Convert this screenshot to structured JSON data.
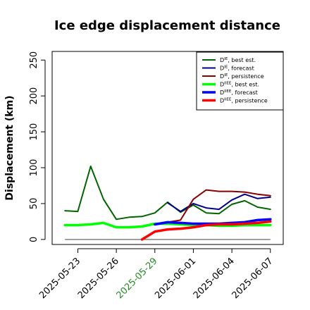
{
  "chart_data": {
    "type": "line",
    "title": "Ice edge displacement distance",
    "ylabel": "Displacement (km)",
    "xlabel": "",
    "ylim": [
      -7,
      262
    ],
    "x_dates": [
      "2025-05-22",
      "2025-05-23",
      "2025-05-24",
      "2025-05-25",
      "2025-05-26",
      "2025-05-27",
      "2025-05-28",
      "2025-05-29",
      "2025-05-30",
      "2025-05-31",
      "2025-06-01",
      "2025-06-02",
      "2025-06-03",
      "2025-06-04",
      "2025-06-05",
      "2025-06-06",
      "2025-06-07"
    ],
    "xlim": [
      "2025-05-21",
      "2025-06-08"
    ],
    "x_ticks": [
      "2025-05-23",
      "2025-05-26",
      "2025-05-29",
      "2025-06-01",
      "2025-06-04",
      "2025-06-07"
    ],
    "x_tick_colors": [
      "#000000",
      "#000000",
      "#228b22",
      "#000000",
      "#000000",
      "#000000"
    ],
    "y_ticks": [
      0,
      50,
      100,
      150,
      200,
      250
    ],
    "grid": false,
    "legend_position": "top-right",
    "series": [
      {
        "name": "DIE, best est.",
        "sup": "IE",
        "desc": "best est.",
        "color": "#006400",
        "width": 2,
        "x_start": 0,
        "values": [
          40,
          39,
          102,
          56,
          28,
          31,
          32,
          37,
          52,
          38,
          48,
          37,
          36,
          49,
          54,
          45,
          42
        ]
      },
      {
        "name": "DIE, forecast",
        "sup": "IE",
        "desc": "forecast",
        "color": "#00008b",
        "width": 2,
        "x_start": 8,
        "values": [
          51,
          39,
          50,
          44,
          42,
          55,
          63,
          57,
          59
        ]
      },
      {
        "name": "DIE, persistence",
        "sup": "IE",
        "desc": "persistence",
        "color": "#8b0000",
        "width": 2,
        "x_start": 8,
        "values": [
          24,
          27,
          56,
          69,
          67,
          67,
          66,
          63,
          61
        ]
      },
      {
        "name": "DIIEE, best est.",
        "sup": "IIEE",
        "desc": "best est.",
        "color": "#00ff00",
        "width": 3.5,
        "x_start": 0,
        "values": [
          20,
          20,
          21,
          23,
          17,
          17,
          18,
          22,
          22,
          21,
          20,
          20,
          19,
          19,
          20,
          20,
          20
        ]
      },
      {
        "name": "DIIEE, forecast",
        "sup": "IIEE",
        "desc": "forecast",
        "color": "#0000ff",
        "width": 3.5,
        "x_start": 7,
        "values": [
          21,
          24,
          23,
          22,
          22,
          22,
          23,
          24,
          27,
          28
        ]
      },
      {
        "name": "DIIEE, persistence",
        "sup": "IIEE",
        "desc": "persistence",
        "color": "#ff0000",
        "width": 3.5,
        "x_start": 6,
        "values": [
          0,
          11,
          14,
          15,
          17,
          20,
          21,
          21,
          22,
          23,
          25
        ]
      }
    ],
    "reference_line": {
      "name": "zero",
      "value": 0,
      "x_start": 0,
      "x_end": 16,
      "color": "#808080"
    }
  }
}
